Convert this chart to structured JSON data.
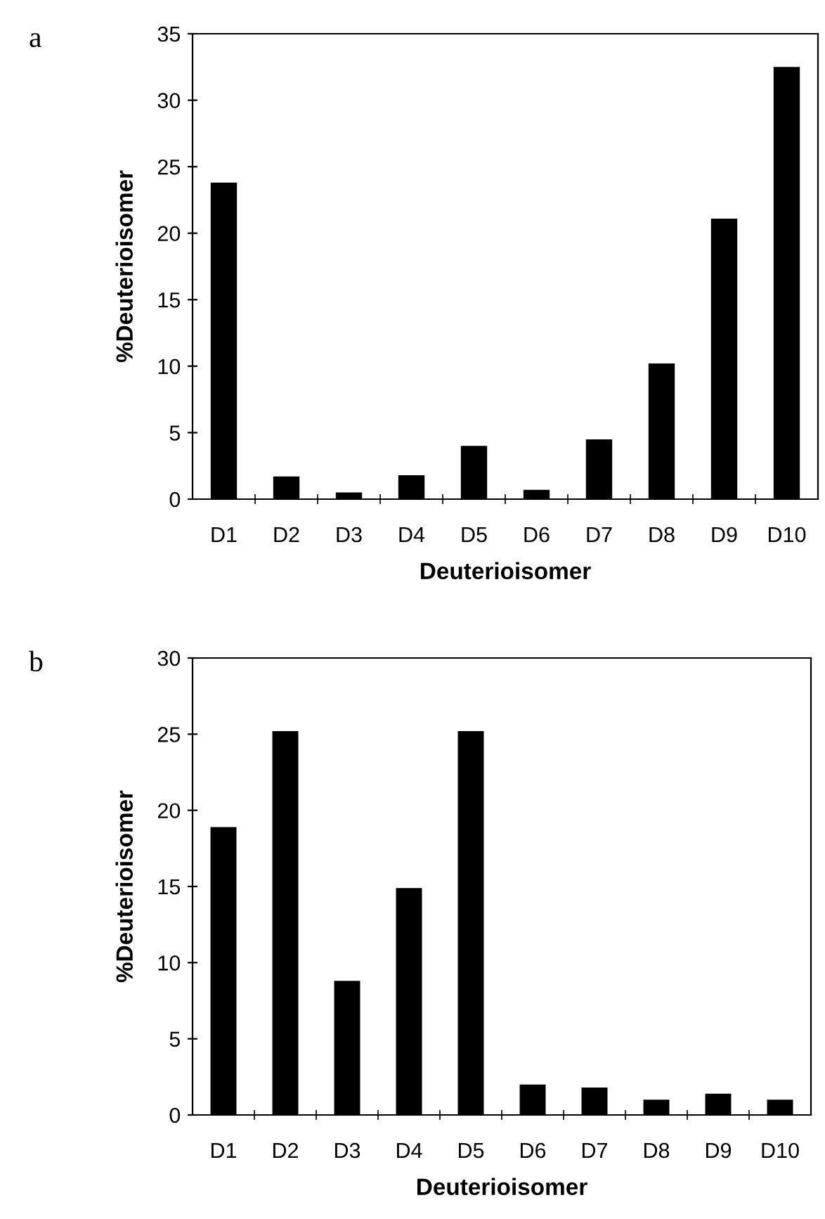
{
  "chart_data": [
    {
      "type": "bar",
      "title": "a",
      "xlabel": "Deuterioisomer",
      "ylabel": "%Deuterioisomer",
      "categories": [
        "D1",
        "D2",
        "D3",
        "D4",
        "D5",
        "D6",
        "D7",
        "D8",
        "D9",
        "D10"
      ],
      "values": [
        23.8,
        1.7,
        0.5,
        1.8,
        4.0,
        0.7,
        4.5,
        10.2,
        21.1,
        32.5
      ],
      "color": "#000000",
      "ylim": [
        0,
        35
      ],
      "yticks": [
        0,
        5,
        10,
        15,
        20,
        25,
        30,
        35
      ],
      "grid": false,
      "legend": false
    },
    {
      "type": "bar",
      "title": "b",
      "xlabel": "Deuterioisomer",
      "ylabel": "%Deuterioisomer",
      "categories": [
        "D1",
        "D2",
        "D3",
        "D4",
        "D5",
        "D6",
        "D7",
        "D8",
        "D9",
        "D10"
      ],
      "values": [
        18.9,
        25.2,
        8.8,
        14.9,
        25.2,
        2.0,
        1.8,
        1.0,
        1.4,
        1.0
      ],
      "color": "#000000",
      "ylim": [
        0,
        30
      ],
      "yticks": [
        0,
        5,
        10,
        15,
        20,
        25,
        30
      ],
      "grid": false,
      "legend": false
    }
  ]
}
